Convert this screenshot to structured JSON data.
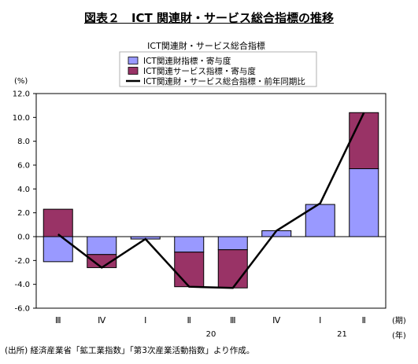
{
  "title": "図表２　ICT 関連財・サービス総合指標の推移",
  "source": "(出所) 経済産業省「鉱工業指数」「第3次産業活動指数」より作成。",
  "chart_data": {
    "type": "bar",
    "subtitle": "ICT関連財・サービス総合指標",
    "ylabel": "(%)",
    "ylim": [
      -6,
      12
    ],
    "yticks": [
      "12.0",
      "10.0",
      "8.0",
      "6.0",
      "4.0",
      "2.0",
      "0.0",
      "-2.0",
      "-4.0",
      "-6.0"
    ],
    "ytick_values": [
      12,
      10,
      8,
      6,
      4,
      2,
      0,
      -2,
      -4,
      -6
    ],
    "categories": [
      "Ⅲ",
      "Ⅳ",
      "Ⅰ",
      "Ⅱ",
      "Ⅲ",
      "Ⅳ",
      "Ⅰ",
      "Ⅱ"
    ],
    "year_labels": [
      {
        "label": "20",
        "category_index": 3.5
      },
      {
        "label": "21",
        "category_index": 6.5
      }
    ],
    "x_unit_top": "(期)",
    "x_unit_bottom": "(年)",
    "stacked": true,
    "legend_position": "top-center",
    "series": [
      {
        "name": "ICT関連財指標・寄与度",
        "kind": "bar",
        "color": "#9999ff",
        "values": [
          -2.1,
          -1.5,
          -0.2,
          -1.3,
          -1.1,
          0.5,
          2.7,
          5.7
        ]
      },
      {
        "name": "ICT関連サービス指標・寄与度",
        "kind": "bar",
        "color": "#993366",
        "values": [
          2.3,
          -1.1,
          0.0,
          -2.9,
          -3.2,
          0.0,
          0.0,
          4.7
        ]
      },
      {
        "name": "ICT関連財・サービス総合指標・前年同期比",
        "kind": "line",
        "color": "#000000",
        "values": [
          0.2,
          -2.6,
          -0.2,
          -4.2,
          -4.3,
          0.5,
          2.8,
          10.4
        ]
      }
    ]
  }
}
